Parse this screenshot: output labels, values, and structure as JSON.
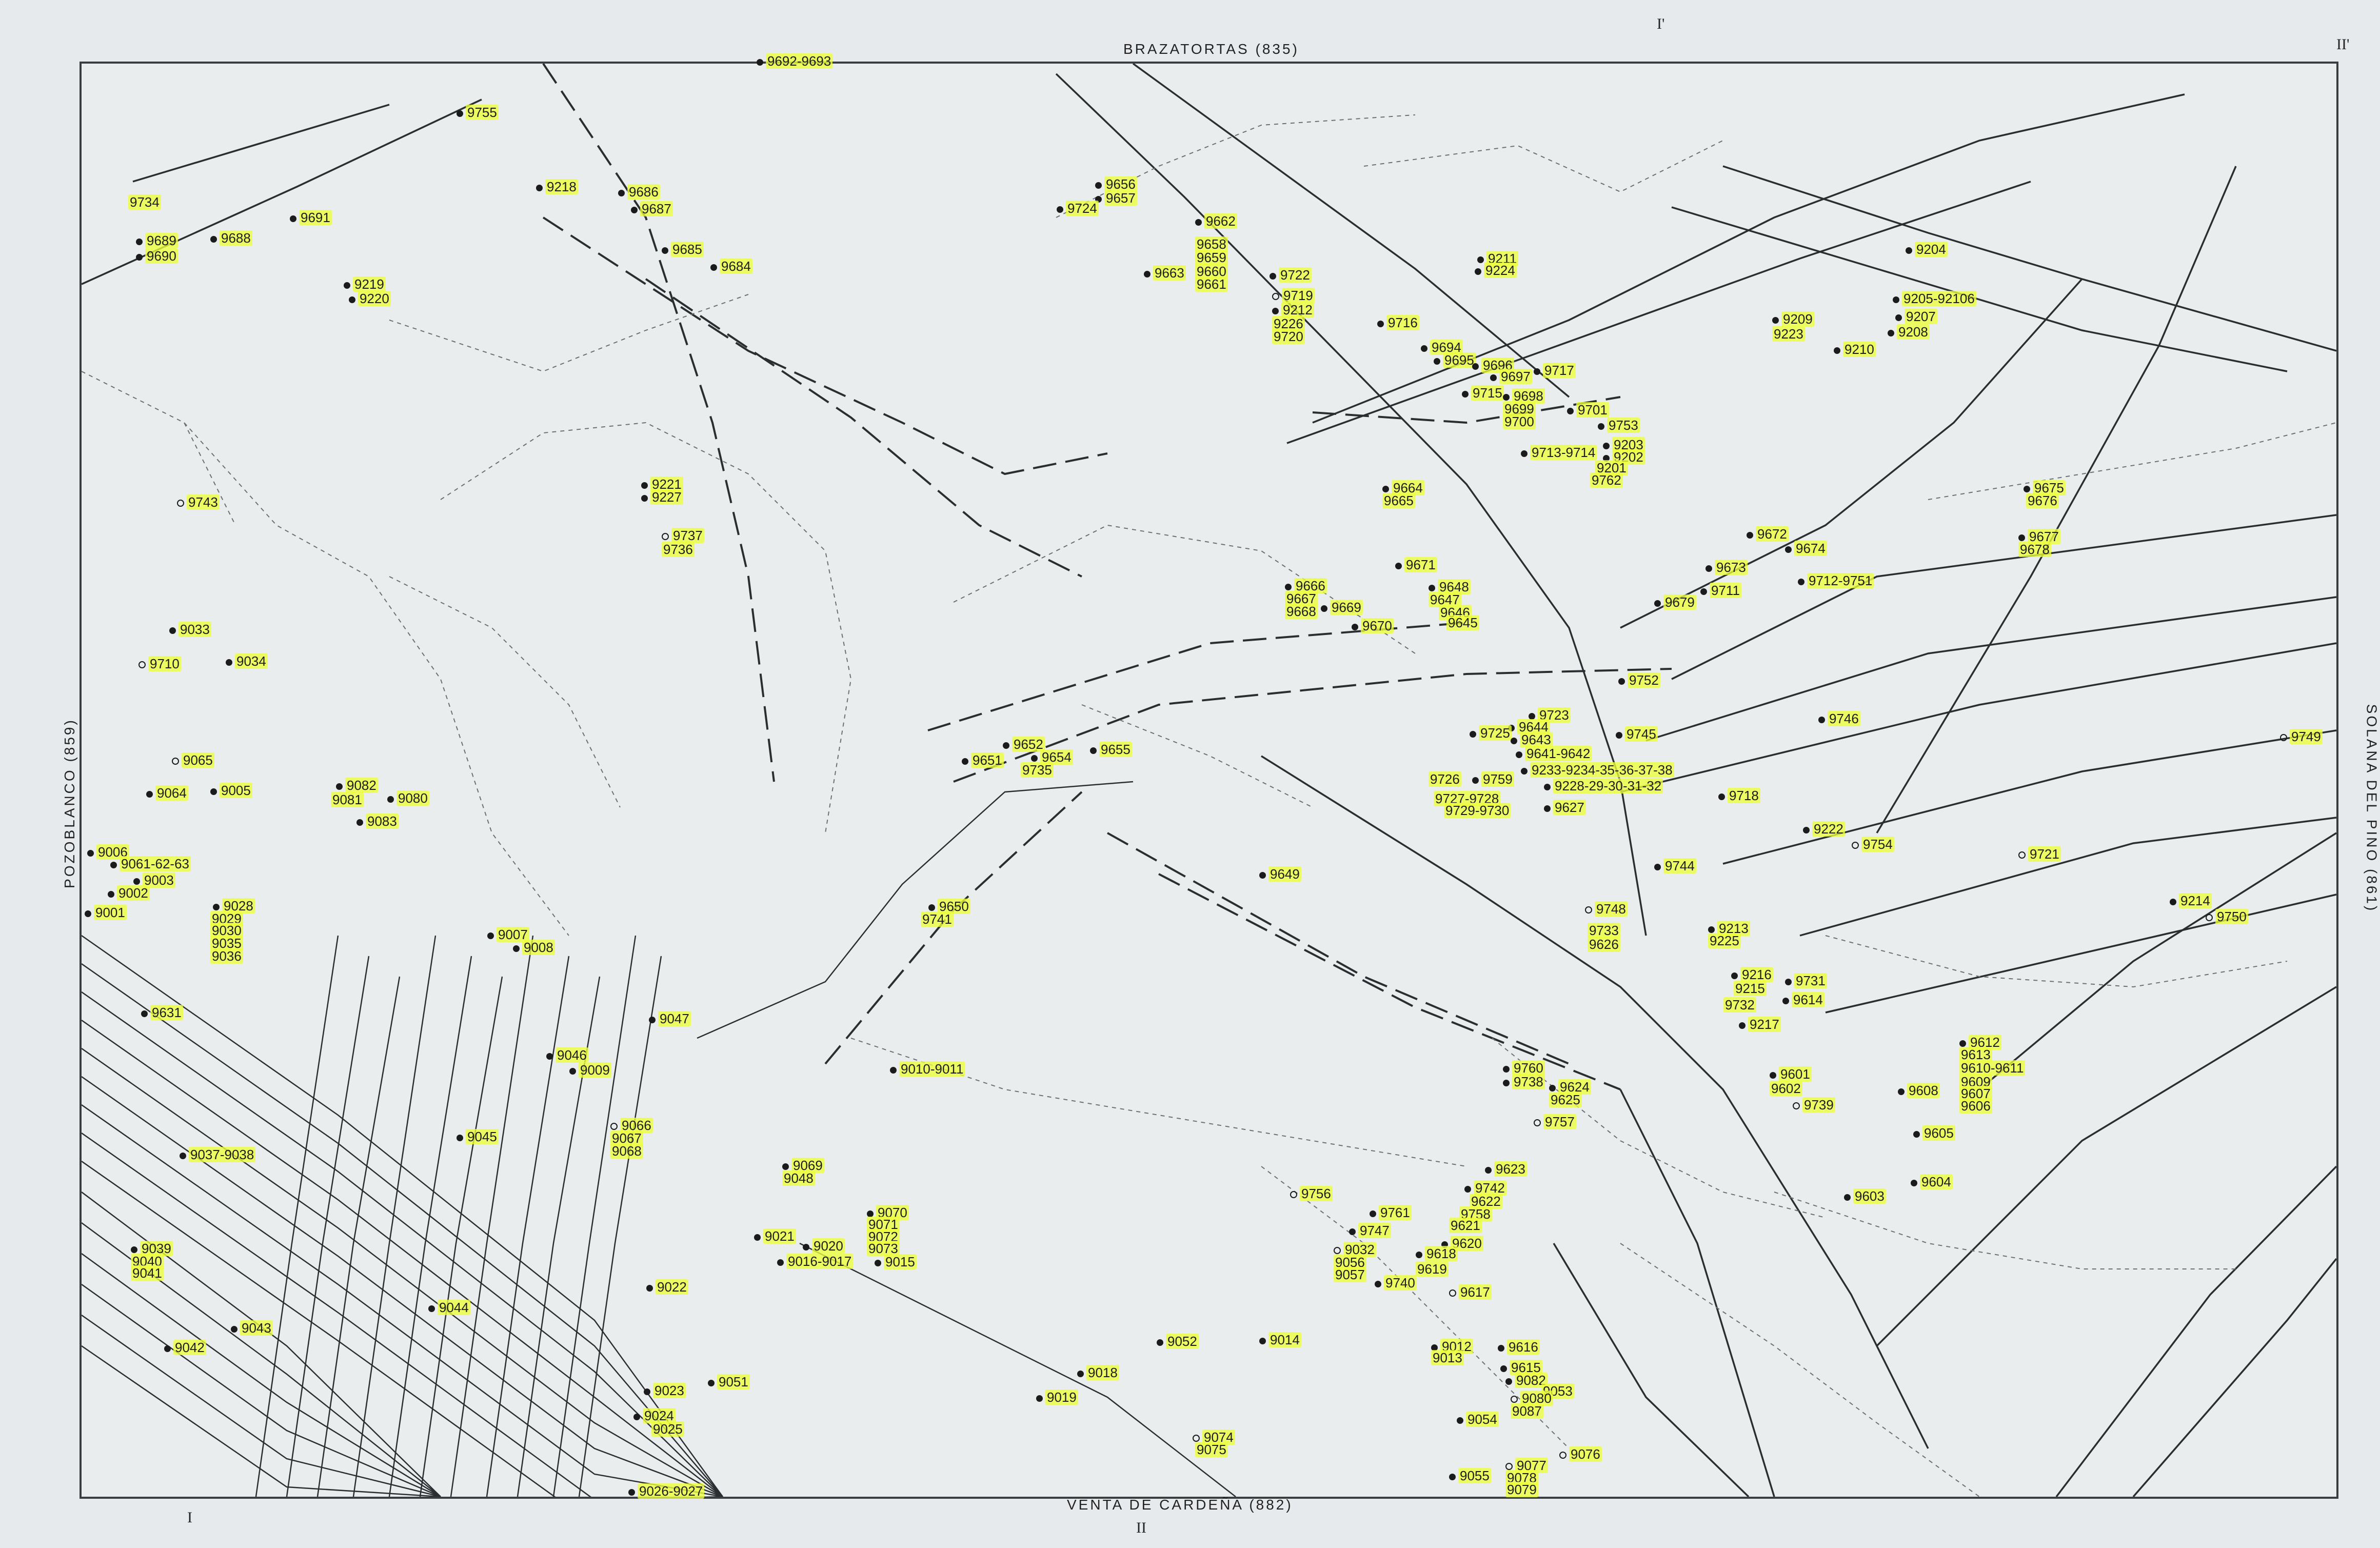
{
  "map": {
    "edge_labels": {
      "top": "BRAZATORTAS (835)",
      "bottom": "VENTA DE CARDEÑA (882)",
      "left": "POZOBLANCO (859)",
      "right": "SOLANA DEL PINO (861)"
    },
    "section_marks": {
      "i_prime": "I'",
      "ii_prime": "II'",
      "i": "I",
      "ii": "II"
    },
    "highlight_color": "#eeff3c",
    "line_color": "#2b2e31",
    "dashed_color": "#6b7074",
    "sites": [
      {
        "id": "s1",
        "label": "9692-9693"
      },
      {
        "id": "s2",
        "label": "9755"
      },
      {
        "id": "s3",
        "label": "9218"
      },
      {
        "id": "s4",
        "label": "9686"
      },
      {
        "id": "s5",
        "label": "9687"
      },
      {
        "id": "s6",
        "label": "9734"
      },
      {
        "id": "s7",
        "label": "9691"
      },
      {
        "id": "s8",
        "label": "9689"
      },
      {
        "id": "s9",
        "label": "9690"
      },
      {
        "id": "s10",
        "label": "9688"
      },
      {
        "id": "s11",
        "label": "9219"
      },
      {
        "id": "s12",
        "label": "9220"
      },
      {
        "id": "s13",
        "label": "9685"
      },
      {
        "id": "s14",
        "label": "9684"
      },
      {
        "id": "s15",
        "label": "9656"
      },
      {
        "id": "s16",
        "label": "9657"
      },
      {
        "id": "s17",
        "label": "9724"
      },
      {
        "id": "s18",
        "label": "9662"
      },
      {
        "id": "s19",
        "label": "9658"
      },
      {
        "id": "s20",
        "label": "9659"
      },
      {
        "id": "s21",
        "label": "9663"
      },
      {
        "id": "s22",
        "label": "9660"
      },
      {
        "id": "s23",
        "label": "9661"
      },
      {
        "id": "s24",
        "label": "9722"
      },
      {
        "id": "s25",
        "label": "9719"
      },
      {
        "id": "s26",
        "label": "9212"
      },
      {
        "id": "s27",
        "label": "9226"
      },
      {
        "id": "s28",
        "label": "9720"
      },
      {
        "id": "s29",
        "label": "9211"
      },
      {
        "id": "s30",
        "label": "9224"
      },
      {
        "id": "s31",
        "label": "9716"
      },
      {
        "id": "s32",
        "label": "9694"
      },
      {
        "id": "s33",
        "label": "9695"
      },
      {
        "id": "s34",
        "label": "9696"
      },
      {
        "id": "s35",
        "label": "9697"
      },
      {
        "id": "s36",
        "label": "9717"
      },
      {
        "id": "s37",
        "label": "9715"
      },
      {
        "id": "s38",
        "label": "9698"
      },
      {
        "id": "s39",
        "label": "9699"
      },
      {
        "id": "s40",
        "label": "9700"
      },
      {
        "id": "s41",
        "label": "9701"
      },
      {
        "id": "s42",
        "label": "9753"
      },
      {
        "id": "s43",
        "label": "9713-9714"
      },
      {
        "id": "s44",
        "label": "9203"
      },
      {
        "id": "s45",
        "label": "9202"
      },
      {
        "id": "s46",
        "label": "9201"
      },
      {
        "id": "s47",
        "label": "9762"
      },
      {
        "id": "s48",
        "label": "9204"
      },
      {
        "id": "s49",
        "label": "9205-92106"
      },
      {
        "id": "s50",
        "label": "9207"
      },
      {
        "id": "s51",
        "label": "9209"
      },
      {
        "id": "s52",
        "label": "9223"
      },
      {
        "id": "s53",
        "label": "9208"
      },
      {
        "id": "s54",
        "label": "9210"
      },
      {
        "id": "s55",
        "label": "9675"
      },
      {
        "id": "s56",
        "label": "9676"
      },
      {
        "id": "s57",
        "label": "9677"
      },
      {
        "id": "s58",
        "label": "9678"
      },
      {
        "id": "s59",
        "label": "9743"
      },
      {
        "id": "s60",
        "label": "9221"
      },
      {
        "id": "s61",
        "label": "9227"
      },
      {
        "id": "s62",
        "label": "9737"
      },
      {
        "id": "s63",
        "label": "9736"
      },
      {
        "id": "s64",
        "label": "9664"
      },
      {
        "id": "s65",
        "label": "9665"
      },
      {
        "id": "s66",
        "label": "9671"
      },
      {
        "id": "s67",
        "label": "9666"
      },
      {
        "id": "s68",
        "label": "9667"
      },
      {
        "id": "s69",
        "label": "9668"
      },
      {
        "id": "s70",
        "label": "9669"
      },
      {
        "id": "s71",
        "label": "9670"
      },
      {
        "id": "s72",
        "label": "9648"
      },
      {
        "id": "s73",
        "label": "9647"
      },
      {
        "id": "s74",
        "label": "9646"
      },
      {
        "id": "s75",
        "label": "9645"
      },
      {
        "id": "s76",
        "label": "9672"
      },
      {
        "id": "s77",
        "label": "9674"
      },
      {
        "id": "s78",
        "label": "9673"
      },
      {
        "id": "s79",
        "label": "9711"
      },
      {
        "id": "s80",
        "label": "9679"
      },
      {
        "id": "s81",
        "label": "9712-9751"
      },
      {
        "id": "s82",
        "label": "9033"
      },
      {
        "id": "s83",
        "label": "9710"
      },
      {
        "id": "s84",
        "label": "9034"
      },
      {
        "id": "s85",
        "label": "9752"
      },
      {
        "id": "s86",
        "label": "9723"
      },
      {
        "id": "s87",
        "label": "9644"
      },
      {
        "id": "s88",
        "label": "9725"
      },
      {
        "id": "s89",
        "label": "9643"
      },
      {
        "id": "s90",
        "label": "9745"
      },
      {
        "id": "s91",
        "label": "9641-9642"
      },
      {
        "id": "s92",
        "label": "9746"
      },
      {
        "id": "s93",
        "label": "9749"
      },
      {
        "id": "s94",
        "label": "9065"
      },
      {
        "id": "s95",
        "label": "9652"
      },
      {
        "id": "s96",
        "label": "9651"
      },
      {
        "id": "s97",
        "label": "9654"
      },
      {
        "id": "s98",
        "label": "9735"
      },
      {
        "id": "s99",
        "label": "9655"
      },
      {
        "id": "s100",
        "label": "9233-9234-35-36-37-38"
      },
      {
        "id": "s101",
        "label": "9726"
      },
      {
        "id": "s102",
        "label": "9759"
      },
      {
        "id": "s103",
        "label": "9228-29-30-31-32"
      },
      {
        "id": "s104",
        "label": "9727-9728"
      },
      {
        "id": "s105",
        "label": "9729-9730"
      },
      {
        "id": "s106",
        "label": "9627"
      },
      {
        "id": "s107",
        "label": "9718"
      },
      {
        "id": "s108",
        "label": "9064"
      },
      {
        "id": "s109",
        "label": "9005"
      },
      {
        "id": "s110",
        "label": "9082"
      },
      {
        "id": "s111",
        "label": "9081"
      },
      {
        "id": "s112",
        "label": "9080"
      },
      {
        "id": "s113",
        "label": "9083"
      },
      {
        "id": "s114",
        "label": "9222"
      },
      {
        "id": "s115",
        "label": "9754"
      },
      {
        "id": "s116",
        "label": "9721"
      },
      {
        "id": "s117",
        "label": "9006"
      },
      {
        "id": "s118",
        "label": "9061-62-63"
      },
      {
        "id": "s119",
        "label": "9003"
      },
      {
        "id": "s120",
        "label": "9002"
      },
      {
        "id": "s121",
        "label": "9001"
      },
      {
        "id": "s122",
        "label": "9649"
      },
      {
        "id": "s123",
        "label": "9744"
      },
      {
        "id": "s124",
        "label": "9214"
      },
      {
        "id": "s125",
        "label": "9750"
      },
      {
        "id": "s126",
        "label": "9028"
      },
      {
        "id": "s127",
        "label": "9029"
      },
      {
        "id": "s128",
        "label": "9030"
      },
      {
        "id": "s129",
        "label": "9035"
      },
      {
        "id": "s130",
        "label": "9036"
      },
      {
        "id": "s131",
        "label": "9650"
      },
      {
        "id": "s132",
        "label": "9741"
      },
      {
        "id": "s133",
        "label": "9748"
      },
      {
        "id": "s134",
        "label": "9733"
      },
      {
        "id": "s135",
        "label": "9626"
      },
      {
        "id": "s136",
        "label": "9213"
      },
      {
        "id": "s137",
        "label": "9225"
      },
      {
        "id": "s138",
        "label": "9007"
      },
      {
        "id": "s139",
        "label": "9008"
      },
      {
        "id": "s140",
        "label": "9216"
      },
      {
        "id": "s141",
        "label": "9215"
      },
      {
        "id": "s142",
        "label": "9731"
      },
      {
        "id": "s143",
        "label": "9614"
      },
      {
        "id": "s144",
        "label": "9732"
      },
      {
        "id": "s145",
        "label": "9217"
      },
      {
        "id": "s146",
        "label": "9631"
      },
      {
        "id": "s147",
        "label": "9047"
      },
      {
        "id": "s148",
        "label": "9612"
      },
      {
        "id": "s149",
        "label": "9613"
      },
      {
        "id": "s150",
        "label": "9610-9611"
      },
      {
        "id": "s151",
        "label": "9046"
      },
      {
        "id": "s152",
        "label": "9009"
      },
      {
        "id": "s153",
        "label": "9010-9011"
      },
      {
        "id": "s154",
        "label": "9760"
      },
      {
        "id": "s155",
        "label": "9738"
      },
      {
        "id": "s156",
        "label": "9624"
      },
      {
        "id": "s157",
        "label": "9625"
      },
      {
        "id": "s158",
        "label": "9601"
      },
      {
        "id": "s159",
        "label": "9602"
      },
      {
        "id": "s160",
        "label": "9739"
      },
      {
        "id": "s161",
        "label": "9609"
      },
      {
        "id": "s162",
        "label": "9608"
      },
      {
        "id": "s163",
        "label": "9607"
      },
      {
        "id": "s164",
        "label": "9606"
      },
      {
        "id": "s165",
        "label": "9757"
      },
      {
        "id": "s166",
        "label": "9066"
      },
      {
        "id": "s167",
        "label": "9067"
      },
      {
        "id": "s168",
        "label": "9068"
      },
      {
        "id": "s169",
        "label": "9045"
      },
      {
        "id": "s170",
        "label": "9605"
      },
      {
        "id": "s171",
        "label": "9037-9038"
      },
      {
        "id": "s172",
        "label": "9623"
      },
      {
        "id": "s173",
        "label": "9069"
      },
      {
        "id": "s174",
        "label": "9048"
      },
      {
        "id": "s175",
        "label": "9604"
      },
      {
        "id": "s176",
        "label": "9603"
      },
      {
        "id": "s177",
        "label": "9742"
      },
      {
        "id": "s178",
        "label": "9622"
      },
      {
        "id": "s179",
        "label": "9756"
      },
      {
        "id": "s180",
        "label": "9758"
      },
      {
        "id": "s181",
        "label": "9761"
      },
      {
        "id": "s182",
        "label": "9621"
      },
      {
        "id": "s183",
        "label": "9070"
      },
      {
        "id": "s184",
        "label": "9071"
      },
      {
        "id": "s185",
        "label": "9072"
      },
      {
        "id": "s186",
        "label": "9073"
      },
      {
        "id": "s187",
        "label": "9021"
      },
      {
        "id": "s188",
        "label": "9020"
      },
      {
        "id": "s189",
        "label": "9016-9017"
      },
      {
        "id": "s190",
        "label": "9015"
      },
      {
        "id": "s191",
        "label": "9747"
      },
      {
        "id": "s192",
        "label": "9620"
      },
      {
        "id": "s193",
        "label": "9039"
      },
      {
        "id": "s194",
        "label": "9040"
      },
      {
        "id": "s195",
        "label": "9041"
      },
      {
        "id": "s196",
        "label": "9032"
      },
      {
        "id": "s197",
        "label": "9056"
      },
      {
        "id": "s198",
        "label": "9057"
      },
      {
        "id": "s199",
        "label": "9618"
      },
      {
        "id": "s200",
        "label": "9619"
      },
      {
        "id": "s201",
        "label": "9022"
      },
      {
        "id": "s202",
        "label": "9740"
      },
      {
        "id": "s203",
        "label": "9617"
      },
      {
        "id": "s204",
        "label": "9044"
      },
      {
        "id": "s205",
        "label": "9043"
      },
      {
        "id": "s206",
        "label": "9052"
      },
      {
        "id": "s207",
        "label": "9014"
      },
      {
        "id": "s208",
        "label": "9012"
      },
      {
        "id": "s209",
        "label": "9013"
      },
      {
        "id": "s210",
        "label": "9616"
      },
      {
        "id": "s211",
        "label": "9042"
      },
      {
        "id": "s212",
        "label": "9018"
      },
      {
        "id": "s213",
        "label": "9019"
      },
      {
        "id": "s214",
        "label": "9615"
      },
      {
        "id": "s215",
        "label": "9082"
      },
      {
        "id": "s216",
        "label": "9053"
      },
      {
        "id": "s217",
        "label": "9080"
      },
      {
        "id": "s218",
        "label": "9087"
      },
      {
        "id": "s219",
        "label": "9051"
      },
      {
        "id": "s220",
        "label": "9023"
      },
      {
        "id": "s221",
        "label": "9054"
      },
      {
        "id": "s222",
        "label": "9024"
      },
      {
        "id": "s223",
        "label": "9025"
      },
      {
        "id": "s224",
        "label": "9074"
      },
      {
        "id": "s225",
        "label": "9075"
      },
      {
        "id": "s226",
        "label": "9076"
      },
      {
        "id": "s227",
        "label": "9077"
      },
      {
        "id": "s228",
        "label": "9055"
      },
      {
        "id": "s229",
        "label": "9078"
      },
      {
        "id": "s230",
        "label": "9079"
      },
      {
        "id": "s231",
        "label": "9026-9027"
      }
    ]
  }
}
